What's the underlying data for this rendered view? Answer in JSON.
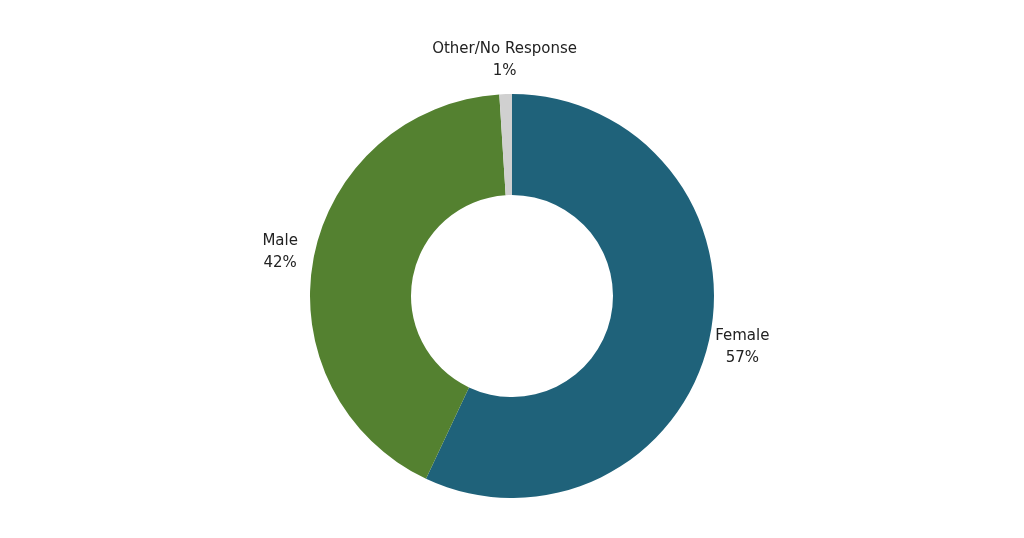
{
  "chart_data": {
    "type": "donut",
    "categories": [
      "Female",
      "Male",
      "Other/No Response"
    ],
    "values": [
      57,
      42,
      1
    ],
    "colors": [
      "#1f627a",
      "#548130",
      "#d0d0d0"
    ],
    "value_labels": [
      "57%",
      "42%",
      "1%"
    ],
    "legend": false
  }
}
